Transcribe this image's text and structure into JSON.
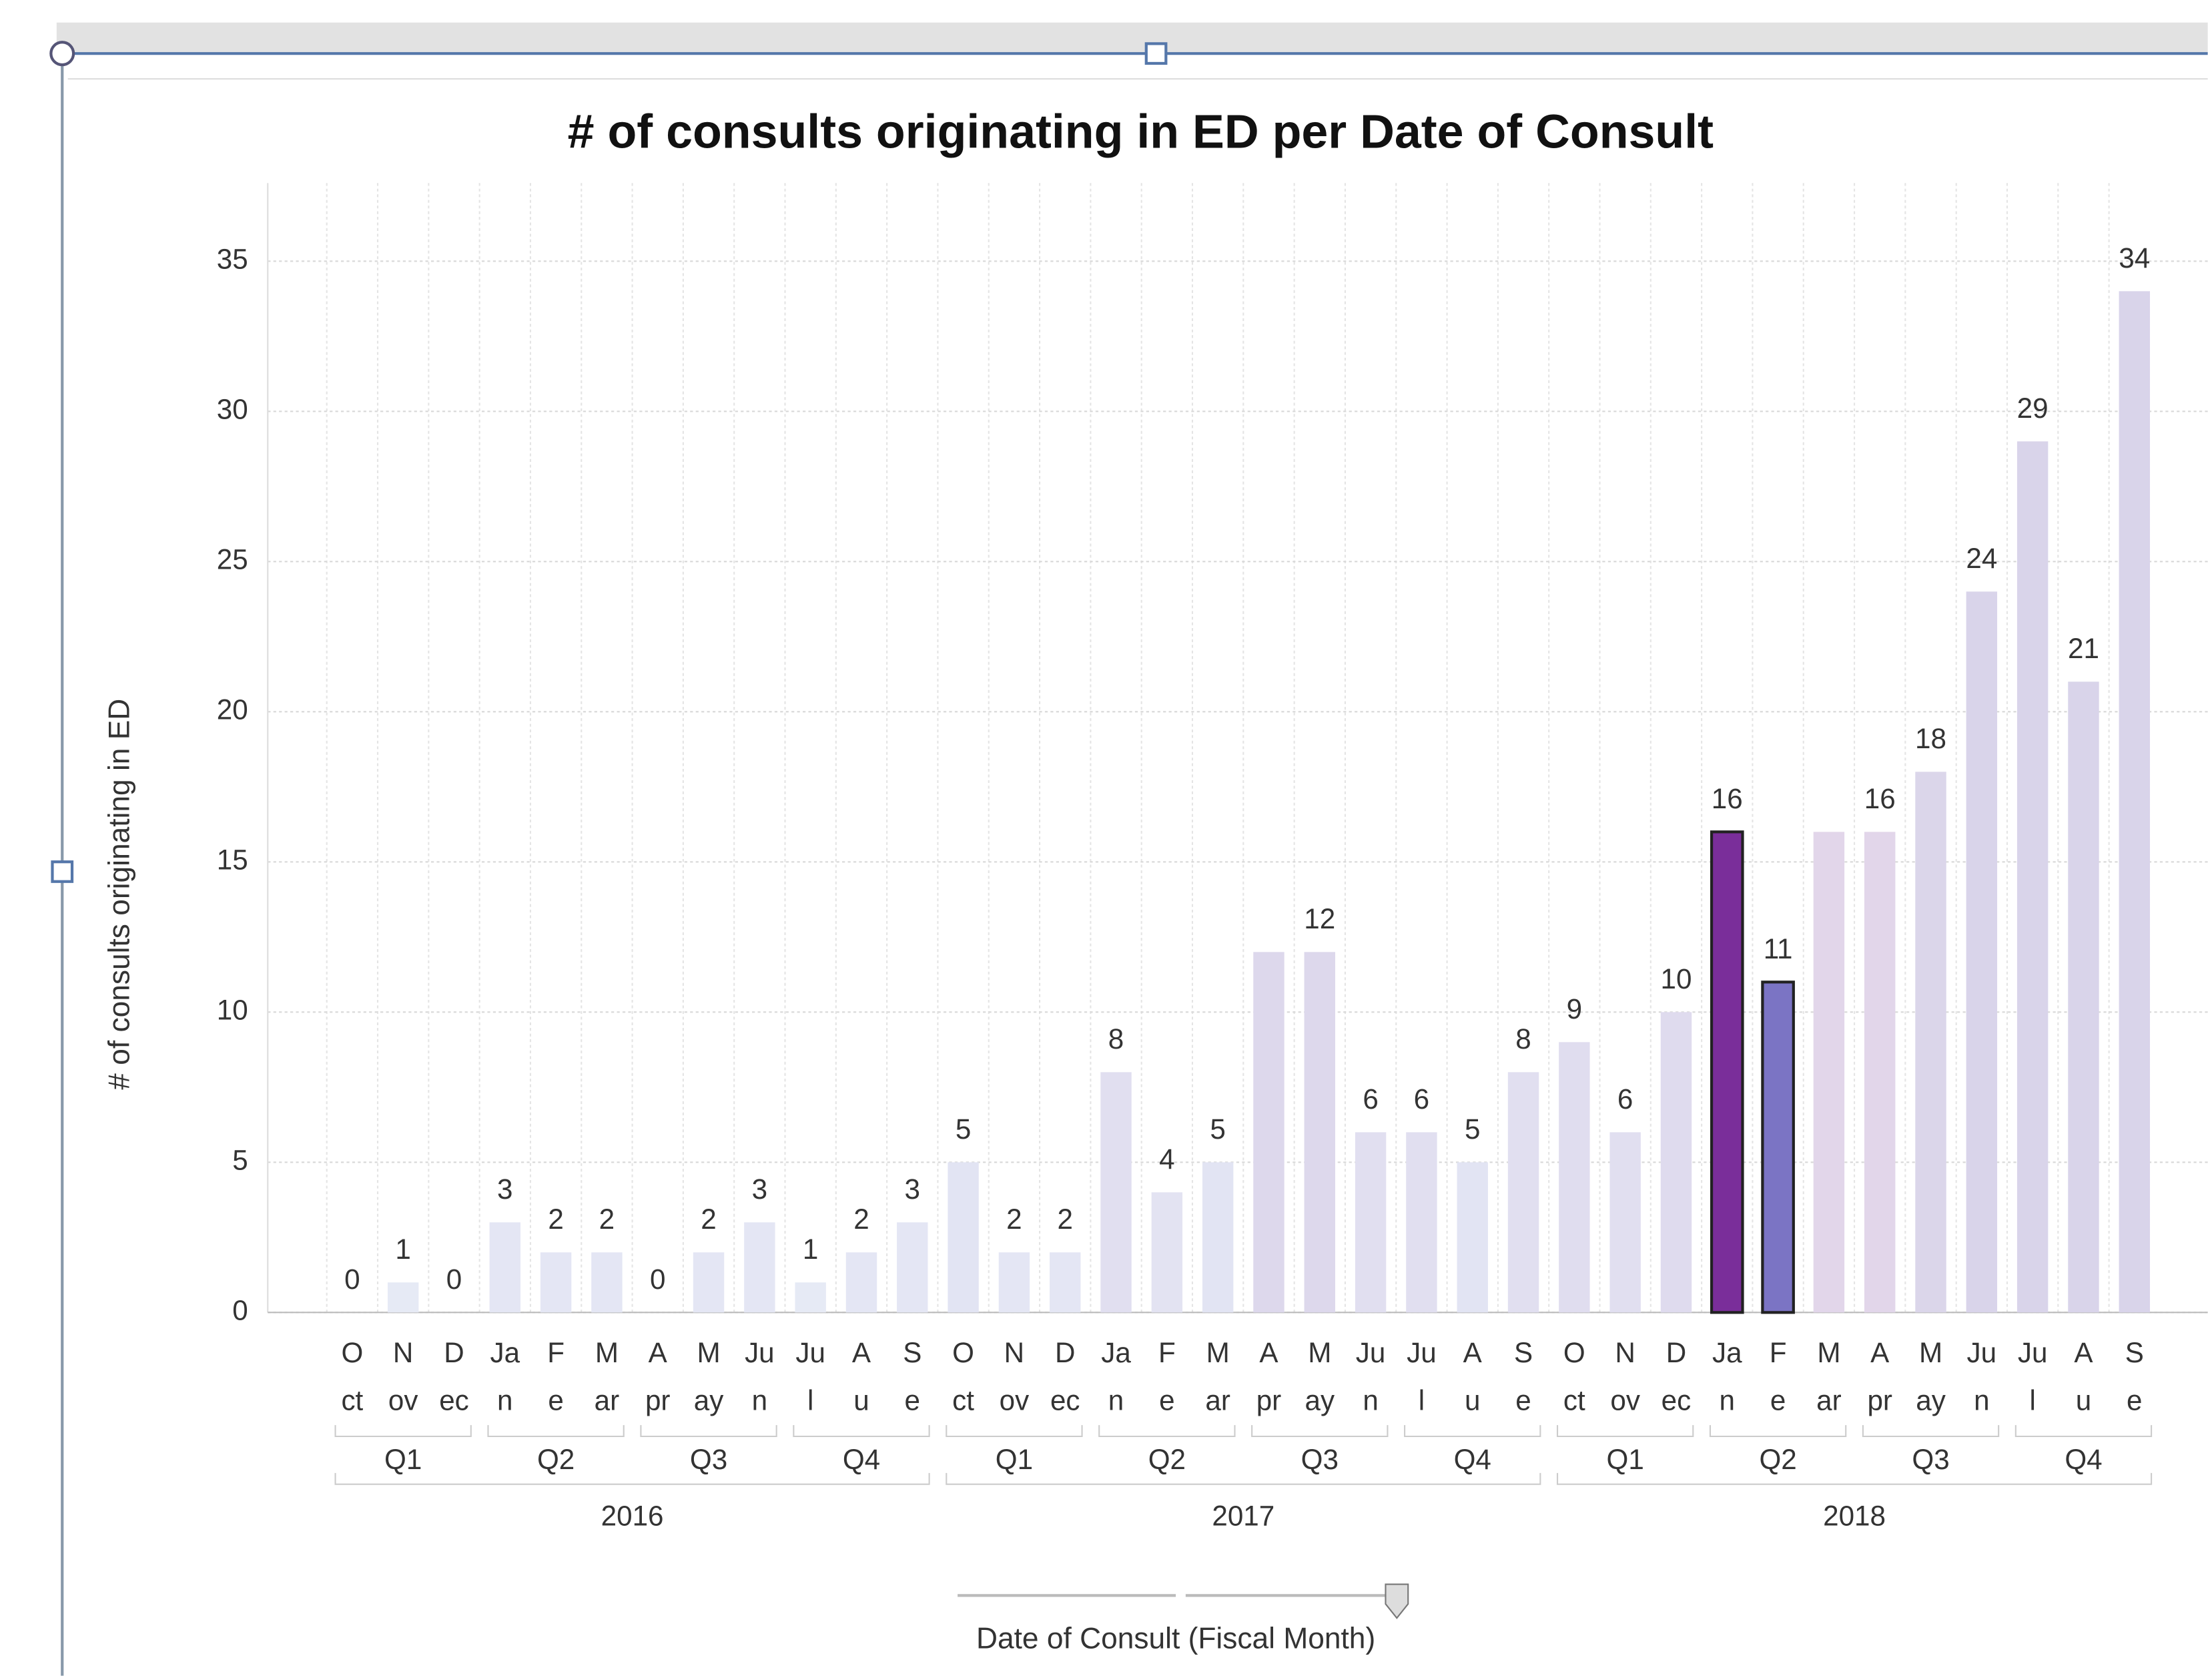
{
  "chart_data": {
    "type": "bar",
    "title": "# of consults originating in ED per Date of Consult",
    "y_label": "# of consults originating in ED",
    "x_label": "Date of Consult (Fiscal Month)",
    "categories": [
      [
        "O",
        "ct"
      ],
      [
        "N",
        "ov"
      ],
      [
        "D",
        "ec"
      ],
      [
        "Ja",
        "n"
      ],
      [
        "F",
        "e"
      ],
      [
        "M",
        "ar"
      ],
      [
        "A",
        "pr"
      ],
      [
        "M",
        "ay"
      ],
      [
        "Ju",
        "n"
      ],
      [
        "Ju",
        "l"
      ],
      [
        "A",
        "u"
      ],
      [
        "S",
        "e"
      ],
      [
        "O",
        "ct"
      ],
      [
        "N",
        "ov"
      ],
      [
        "D",
        "ec"
      ],
      [
        "Ja",
        "n"
      ],
      [
        "F",
        "e"
      ],
      [
        "M",
        "ar"
      ],
      [
        "A",
        "pr"
      ],
      [
        "M",
        "ay"
      ],
      [
        "Ju",
        "n"
      ],
      [
        "Ju",
        "l"
      ],
      [
        "A",
        "u"
      ],
      [
        "S",
        "e"
      ],
      [
        "O",
        "ct"
      ],
      [
        "N",
        "ov"
      ],
      [
        "D",
        "ec"
      ],
      [
        "Ja",
        "n"
      ],
      [
        "F",
        "e"
      ],
      [
        "M",
        "ar"
      ],
      [
        "A",
        "pr"
      ],
      [
        "M",
        "ay"
      ],
      [
        "Ju",
        "n"
      ],
      [
        "Ju",
        "l"
      ],
      [
        "A",
        "u"
      ],
      [
        "S",
        "e"
      ]
    ],
    "quarters": [
      "Q1",
      "Q2",
      "Q3",
      "Q4",
      "Q1",
      "Q2",
      "Q3",
      "Q4",
      "Q1",
      "Q2",
      "Q3",
      "Q4"
    ],
    "years": [
      "2016",
      "2017",
      "2018"
    ],
    "values": [
      0,
      1,
      0,
      3,
      2,
      2,
      0,
      2,
      3,
      1,
      2,
      3,
      5,
      2,
      2,
      8,
      4,
      5,
      12,
      12,
      6,
      6,
      5,
      8,
      9,
      6,
      10,
      16,
      11,
      16,
      16,
      18,
      24,
      29,
      21,
      34
    ],
    "value_labels": [
      "0",
      "1",
      "0",
      "3",
      "2",
      "2",
      "0",
      "2",
      "3",
      "1",
      "2",
      "3",
      "5",
      "2",
      "2",
      "8",
      "4",
      "5",
      null,
      "12",
      "6",
      "6",
      "5",
      "8",
      "9",
      "6",
      "10",
      "16",
      "11",
      null,
      "16",
      "18",
      "24",
      "29",
      "21",
      "34"
    ],
    "colors": [
      "#e6eaf5",
      "#e6eaf5",
      "#e6eaf5",
      "#e4e6f4",
      "#e4e6f4",
      "#e4e6f4",
      "#e6eaf5",
      "#e4e6f4",
      "#e4e6f4",
      "#e6eaf5",
      "#e4e6f4",
      "#e4e6f4",
      "#e2e4f3",
      "#e4e6f4",
      "#e4e6f4",
      "#e1dff0",
      "#e3e3f2",
      "#e2e4f3",
      "#ddd8ec",
      "#ddd8ec",
      "#e1dff0",
      "#e1dff0",
      "#e2e4f3",
      "#e1dff0",
      "#e0ddef",
      "#e1dff0",
      "#dfdbee",
      "#7a2e9a",
      "#7b74c4",
      "#e2d6ea",
      "#e2d6ea",
      "#dbd6ea",
      "#d9d4ea",
      "#d9d4ea",
      "#d9d4ea",
      "#d9d4ea"
    ],
    "highlighted": [
      27,
      28
    ],
    "ylim": [
      0,
      37.6
    ],
    "yticks": [
      0,
      5,
      10,
      15,
      20,
      25,
      30,
      35
    ],
    "grid": true
  }
}
